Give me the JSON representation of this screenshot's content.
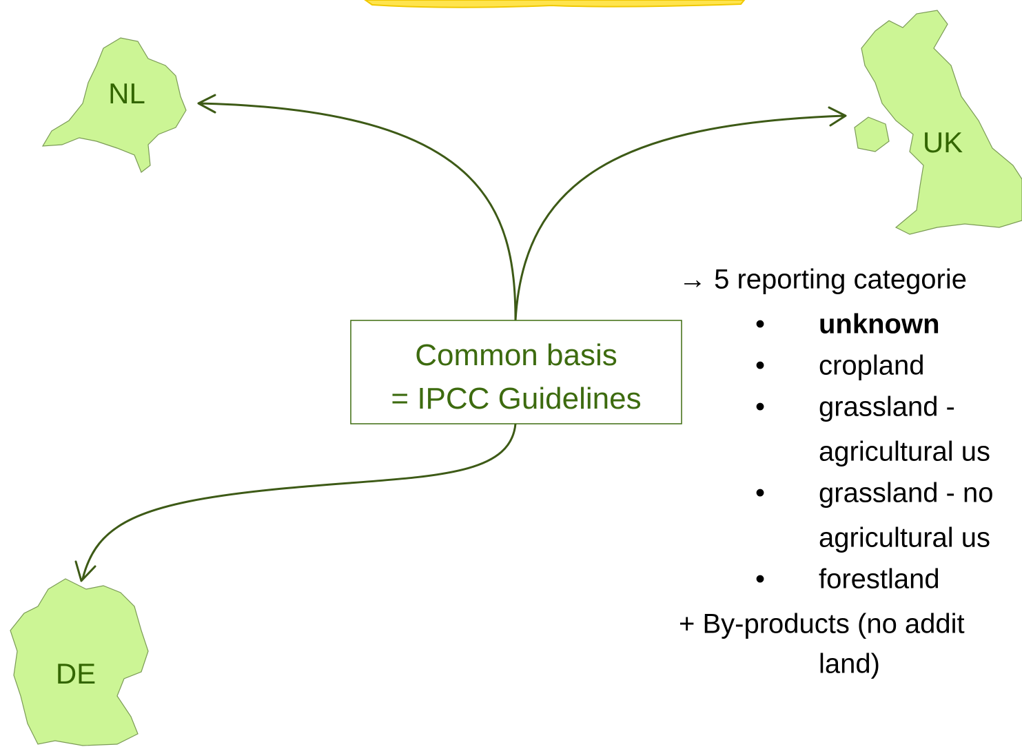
{
  "nodes": [
    {
      "label": "NL"
    },
    {
      "label": "UK"
    },
    {
      "label": "DE"
    }
  ],
  "center": {
    "lines": [
      "Common basis",
      "= IPCC Guidelines"
    ]
  },
  "list": {
    "header": "→ 5 reporting categorie",
    "items": [
      [
        "unknown"
      ],
      [
        "cropland"
      ],
      [
        "grassland -",
        "agricultural us"
      ],
      [
        "grassland - no",
        "agricultural us"
      ],
      [
        "forestland"
      ]
    ],
    "footer": [
      "+ By-products (no addit",
      "land)"
    ]
  }
}
